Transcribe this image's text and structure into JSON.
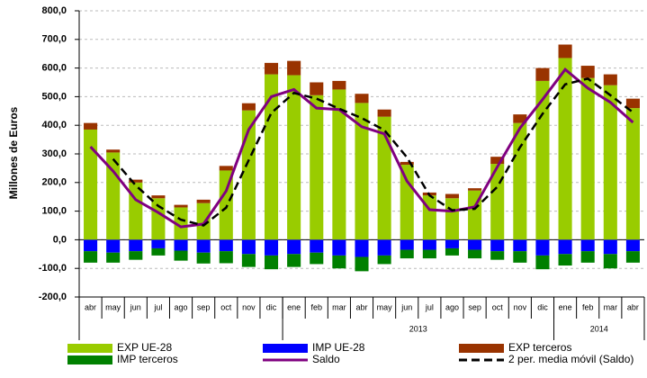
{
  "chart_data": {
    "type": "bar",
    "y_label": "Millones de Euros",
    "categories": [
      "abr",
      "may",
      "jun",
      "jul",
      "ago",
      "sep",
      "oct",
      "nov",
      "dic",
      "ene",
      "feb",
      "mar",
      "abr",
      "may",
      "jun",
      "jul",
      "ago",
      "sep",
      "oct",
      "nov",
      "dic",
      "ene",
      "feb",
      "mar",
      "abr"
    ],
    "category_groups": [
      "2013",
      "2014"
    ],
    "ylim": [
      -200,
      800
    ],
    "yticks": [
      {
        "value": -200,
        "label": "-200,0"
      },
      {
        "value": -100,
        "label": "-100,0"
      },
      {
        "value": 0,
        "label": "0,0"
      },
      {
        "value": 100,
        "label": "100,0"
      },
      {
        "value": 200,
        "label": "200,0"
      },
      {
        "value": 300,
        "label": "300,0"
      },
      {
        "value": 400,
        "label": "400,0"
      },
      {
        "value": 500,
        "label": "500,0"
      },
      {
        "value": 600,
        "label": "600,0"
      },
      {
        "value": 700,
        "label": "700,0"
      },
      {
        "value": 800,
        "label": "800,0"
      }
    ],
    "grid": true,
    "series": [
      {
        "name": "EXP UE-28",
        "color": "#99cc00",
        "kind": "bar",
        "values": [
          385,
          305,
          200,
          145,
          113,
          128,
          242,
          452,
          578,
          575,
          505,
          525,
          478,
          430,
          262,
          155,
          145,
          172,
          265,
          408,
          555,
          635,
          565,
          540,
          460
        ]
      },
      {
        "name": "IMP UE-28",
        "color": "#0000ff",
        "kind": "bar",
        "values": [
          -40,
          -45,
          -40,
          -30,
          -38,
          -45,
          -40,
          -50,
          -55,
          -50,
          -45,
          -55,
          -60,
          -55,
          -35,
          -35,
          -30,
          -35,
          -40,
          -40,
          -55,
          -50,
          -40,
          -50,
          -40
        ]
      },
      {
        "name": "EXP terceros",
        "color": "#993300",
        "kind": "bar",
        "values": [
          23,
          10,
          10,
          10,
          9,
          12,
          16,
          25,
          40,
          50,
          45,
          30,
          32,
          25,
          10,
          10,
          15,
          8,
          25,
          30,
          45,
          47,
          43,
          38,
          33
        ]
      },
      {
        "name": "IMP terceros",
        "color": "#008000",
        "kind": "bar",
        "values": [
          -40,
          -35,
          -30,
          -25,
          -35,
          -38,
          -42,
          -45,
          -48,
          -45,
          -40,
          -45,
          -50,
          -30,
          -30,
          -30,
          -25,
          -30,
          -30,
          -40,
          -48,
          -40,
          -40,
          -50,
          -40
        ]
      },
      {
        "name": "Saldo",
        "color": "#800080",
        "kind": "line",
        "values": [
          325,
          240,
          140,
          95,
          45,
          55,
          170,
          385,
          500,
          525,
          460,
          455,
          395,
          370,
          205,
          105,
          100,
          115,
          255,
          390,
          490,
          595,
          530,
          480,
          410
        ]
      },
      {
        "name": "2 per. media móvil (Saldo)",
        "color": "#000000",
        "kind": "dashed",
        "values": [
          null,
          282,
          190,
          118,
          70,
          50,
          112,
          278,
          443,
          513,
          493,
          458,
          425,
          383,
          288,
          155,
          103,
          108,
          185,
          323,
          440,
          543,
          563,
          505,
          445
        ]
      }
    ]
  }
}
